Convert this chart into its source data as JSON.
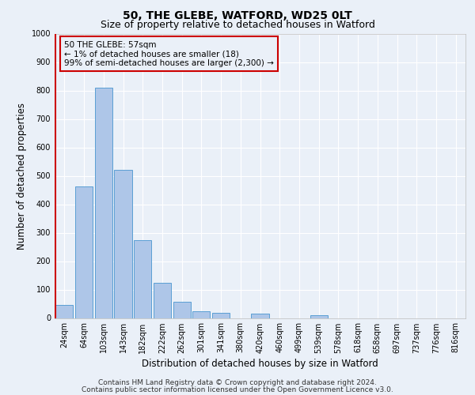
{
  "title_line1": "50, THE GLEBE, WATFORD, WD25 0LT",
  "title_line2": "Size of property relative to detached houses in Watford",
  "xlabel": "Distribution of detached houses by size in Watford",
  "ylabel": "Number of detached properties",
  "footer_line1": "Contains HM Land Registry data © Crown copyright and database right 2024.",
  "footer_line2": "Contains public sector information licensed under the Open Government Licence v3.0.",
  "bar_labels": [
    "24sqm",
    "64sqm",
    "103sqm",
    "143sqm",
    "182sqm",
    "222sqm",
    "262sqm",
    "301sqm",
    "341sqm",
    "380sqm",
    "420sqm",
    "460sqm",
    "499sqm",
    "539sqm",
    "578sqm",
    "618sqm",
    "658sqm",
    "697sqm",
    "737sqm",
    "776sqm",
    "816sqm"
  ],
  "bar_values": [
    45,
    462,
    810,
    520,
    275,
    125,
    58,
    25,
    18,
    0,
    15,
    0,
    0,
    10,
    0,
    0,
    0,
    0,
    0,
    0,
    0
  ],
  "bar_color": "#aec6e8",
  "bar_edge_color": "#5a9fd4",
  "property_label": "50 THE GLEBE: 57sqm",
  "annotation_line1": "← 1% of detached houses are smaller (18)",
  "annotation_line2": "99% of semi-detached houses are larger (2,300) →",
  "ylim": [
    0,
    1000
  ],
  "yticks": [
    0,
    100,
    200,
    300,
    400,
    500,
    600,
    700,
    800,
    900,
    1000
  ],
  "bg_color": "#eaf0f8",
  "plot_bg_color": "#eaf0f8",
  "grid_color": "#ffffff",
  "red_line_color": "#cc0000",
  "annotation_box_edge": "#cc0000",
  "title_fontsize": 10,
  "subtitle_fontsize": 9,
  "axis_label_fontsize": 8.5,
  "tick_fontsize": 7,
  "footer_fontsize": 6.5,
  "annot_fontsize": 7.5
}
